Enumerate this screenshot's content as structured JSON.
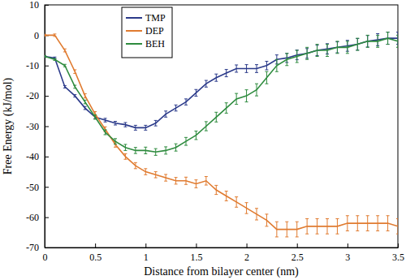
{
  "chart_data": {
    "type": "line",
    "x_label": "Distance from bilayer center (nm)",
    "y_label": "Free Energy (kJ/mol)",
    "x": [
      0,
      0.1,
      0.2,
      0.3,
      0.4,
      0.5,
      0.6,
      0.7,
      0.8,
      0.9,
      1.0,
      1.1,
      1.2,
      1.3,
      1.4,
      1.5,
      1.6,
      1.7,
      1.8,
      1.9,
      2.0,
      2.1,
      2.2,
      2.3,
      2.4,
      2.5,
      2.6,
      2.7,
      2.8,
      2.9,
      3.0,
      3.1,
      3.2,
      3.3,
      3.4,
      3.5
    ],
    "series": [
      {
        "name": "TMP",
        "color": "#2b3a8a",
        "values": [
          -7,
          -7.5,
          -17,
          -20,
          -24,
          -27,
          -28,
          -29,
          -29.5,
          -30.5,
          -30.5,
          -29,
          -26,
          -24,
          -22,
          -19,
          -16,
          -14,
          -12.5,
          -11,
          -11,
          -11,
          -10,
          -8,
          -7.5,
          -6.5,
          -6,
          -5,
          -4.5,
          -4,
          -3.5,
          -3,
          -2,
          -1.5,
          -1,
          -1
        ],
        "errors": [
          0.3,
          0.3,
          0.4,
          0.4,
          0.5,
          0.5,
          0.6,
          0.6,
          0.7,
          0.8,
          0.8,
          0.9,
          1,
          1,
          1,
          1.1,
          1.1,
          1.2,
          1.2,
          1.2,
          1.3,
          1.3,
          1.4,
          1.5,
          1.5,
          1.6,
          1.6,
          1.7,
          1.7,
          1.8,
          1.8,
          1.9,
          1.9,
          2,
          2,
          2
        ]
      },
      {
        "name": "DEP",
        "color": "#e07b30",
        "values": [
          0,
          0,
          -5,
          -12,
          -20,
          -26,
          -31,
          -36,
          -40,
          -43,
          -45,
          -46,
          -47,
          -48,
          -48,
          -49,
          -48,
          -51,
          -53,
          -55,
          -57,
          -59,
          -61,
          -64,
          -64,
          -64,
          -63,
          -63,
          -63,
          -63,
          -62,
          -62,
          -62,
          -62,
          -62,
          -63
        ],
        "errors": [
          0.3,
          0.4,
          0.5,
          0.6,
          0.7,
          0.8,
          0.8,
          0.9,
          0.9,
          1,
          1,
          1,
          1.1,
          1.1,
          1.2,
          1.3,
          1.4,
          1.5,
          1.6,
          1.7,
          1.8,
          1.9,
          2,
          2.5,
          2.5,
          2.5,
          2.5,
          2.5,
          2.5,
          2.5,
          2.5,
          2.5,
          2.5,
          2.5,
          2.5,
          2.5
        ]
      },
      {
        "name": "BEH",
        "color": "#2e8b3e",
        "values": [
          -7,
          -8,
          -10,
          -17,
          -22,
          -27,
          -32,
          -35,
          -37,
          -38,
          -38,
          -38.5,
          -38,
          -37,
          -35,
          -33,
          -30,
          -27,
          -24,
          -21,
          -20,
          -18,
          -14,
          -10,
          -8,
          -7,
          -6,
          -5,
          -5,
          -4,
          -4,
          -3,
          -2,
          -2,
          -1,
          -2
        ],
        "errors": [
          0.3,
          0.3,
          0.4,
          0.5,
          0.6,
          0.7,
          0.8,
          0.9,
          1,
          1,
          1.1,
          1.1,
          1.2,
          1.2,
          1.3,
          1.4,
          1.5,
          1.6,
          1.7,
          1.8,
          2,
          2,
          2,
          2,
          2,
          2,
          2,
          2,
          2,
          2,
          2,
          2,
          2,
          2,
          2,
          2
        ]
      }
    ],
    "xlim": [
      0,
      3.5
    ],
    "xticks": [
      0,
      0.5,
      1,
      1.5,
      2,
      2.5,
      3,
      3.5
    ],
    "ylim": [
      -70,
      10
    ],
    "yticks": [
      -70,
      -60,
      -50,
      -40,
      -30,
      -20,
      -10,
      0,
      10
    ],
    "grid": false,
    "legend": "upper left"
  }
}
